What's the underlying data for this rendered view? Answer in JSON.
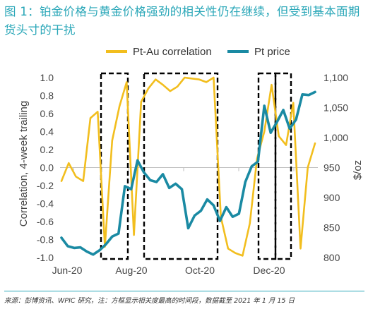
{
  "title": "图 1：铂金价格与黄金价格强劲的相关性仍在继续，但受到基本面期货头寸的干扰",
  "source": "来源：彭博资讯、WPIC 研究，注：方框显示相关度最高的时间段，数据截至 2021 年 1 月 15 日",
  "colors": {
    "correlation": "#f2be1e",
    "price": "#1a8aa3",
    "title": "#2aa7b8",
    "box": "#000000"
  },
  "chart_data": {
    "type": "line",
    "x_tick_labels": [
      "Jun-20",
      "Aug-20",
      "Oct-20",
      "Dec-20"
    ],
    "left_axis": {
      "label": "Correlation, 4-week trailing",
      "range": [
        -1.0,
        1.0
      ],
      "ticks": [
        "-1.0",
        "-0.8",
        "-0.6",
        "-0.4",
        "-0.2",
        "0.0",
        "0.2",
        "0.4",
        "0.6",
        "0.8",
        "1.0"
      ]
    },
    "right_axis": {
      "label": "$/oz",
      "range": [
        800,
        1100
      ],
      "ticks": [
        "800",
        "850",
        "900",
        "950",
        "1,000",
        "1,050",
        "1,100"
      ]
    },
    "legend_position": "top",
    "series": [
      {
        "name": "Pt-Au correlation",
        "axis": "left",
        "values": [
          -0.15,
          0.05,
          -0.1,
          -0.15,
          0.55,
          0.62,
          -0.88,
          0.3,
          0.68,
          0.95,
          -0.75,
          0.73,
          0.88,
          0.98,
          0.92,
          0.85,
          0.9,
          1.0,
          0.99,
          0.98,
          0.95,
          1.0,
          -0.55,
          -0.9,
          -0.95,
          -0.98,
          -0.62,
          0.1,
          0.4,
          0.92,
          0.35,
          0.25,
          0.72,
          -0.9,
          0.0,
          0.27
        ]
      },
      {
        "name": "Pt price",
        "axis": "right",
        "values": [
          833,
          819,
          816,
          817,
          810,
          805,
          812,
          822,
          835,
          840,
          919,
          914,
          962,
          942,
          929,
          926,
          939,
          916,
          923,
          914,
          849,
          870,
          878,
          897,
          887,
          861,
          884,
          868,
          873,
          926,
          952,
          960,
          1053,
          1008,
          1026,
          1046,
          1015,
          1030,
          1072,
          1071,
          1076
        ]
      }
    ],
    "annotations": {
      "type": "dashed-box",
      "count": 4
    }
  }
}
